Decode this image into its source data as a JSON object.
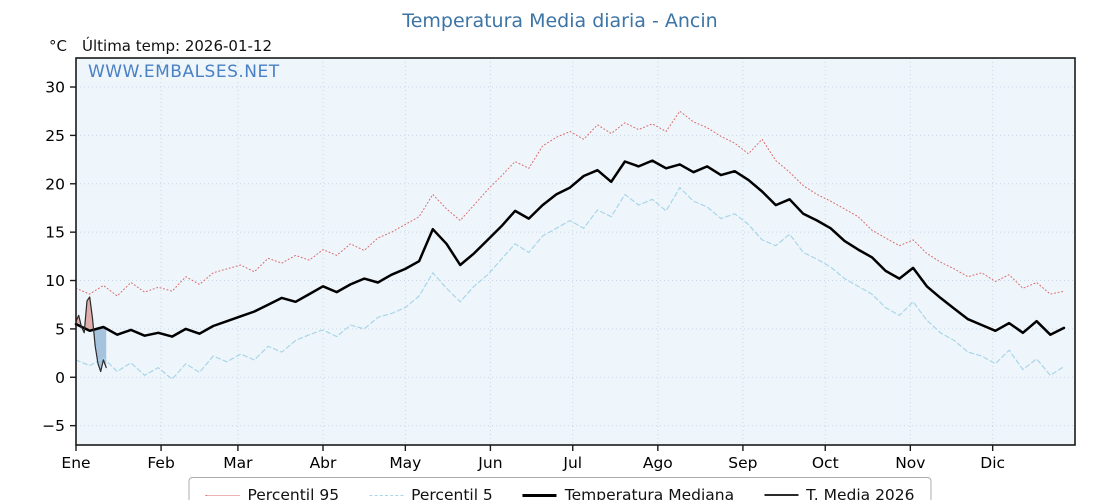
{
  "page": {
    "title": "Temperatura Media diaria - Ancin",
    "unit_label": "°C",
    "last_temp_label": "Última temp: 2026-01-12",
    "watermark": "WWW.EMBALSES.NET"
  },
  "legend": [
    {
      "label": "Percentil 95",
      "type": "dotted",
      "color": "#d96a6a"
    },
    {
      "label": "Percentil 5",
      "type": "dashed",
      "color": "#a9d6e8"
    },
    {
      "label": "Temperatura Mediana",
      "type": "thick",
      "color": "#000000"
    },
    {
      "label": "T. Media 2026",
      "type": "thin",
      "color": "#2a2a2a"
    }
  ],
  "chart_data": {
    "type": "line",
    "title": "Temperatura Media diaria - Ancin",
    "ylabel": "°C",
    "ylim": [
      -7,
      33
    ],
    "yticks": [
      -5,
      0,
      5,
      10,
      15,
      20,
      25,
      30
    ],
    "xlim": [
      1,
      365
    ],
    "grid": true,
    "plot_bg": "#eef5fb",
    "grid_color": "#c9d7e4",
    "month_ticks": {
      "labels": [
        "Ene",
        "Feb",
        "Mar",
        "Abr",
        "May",
        "Jun",
        "Jul",
        "Ago",
        "Sep",
        "Oct",
        "Nov",
        "Dic"
      ],
      "days": [
        1,
        32,
        60,
        91,
        121,
        152,
        182,
        213,
        244,
        274,
        305,
        335
      ]
    },
    "x": [
      1,
      6,
      11,
      16,
      21,
      26,
      31,
      36,
      41,
      46,
      51,
      56,
      61,
      66,
      71,
      76,
      81,
      86,
      91,
      96,
      101,
      106,
      111,
      116,
      121,
      126,
      131,
      136,
      141,
      146,
      151,
      156,
      161,
      166,
      171,
      176,
      181,
      186,
      191,
      196,
      201,
      206,
      211,
      216,
      221,
      226,
      231,
      236,
      241,
      246,
      251,
      256,
      261,
      266,
      271,
      276,
      281,
      286,
      291,
      296,
      301,
      306,
      311,
      316,
      321,
      326,
      331,
      336,
      341,
      346,
      351,
      356,
      361
    ],
    "series": [
      {
        "name": "Percentil 95",
        "color": "#d96a6a",
        "style": "dotted",
        "width": 1,
        "values": [
          9.2,
          8.6,
          9.5,
          8.4,
          9.8,
          8.8,
          9.3,
          8.9,
          10.4,
          9.6,
          10.8,
          11.2,
          11.6,
          10.9,
          12.3,
          11.8,
          12.6,
          12.1,
          13.2,
          12.6,
          13.8,
          13.1,
          14.4,
          15.0,
          15.8,
          16.6,
          18.9,
          17.4,
          16.2,
          17.8,
          19.4,
          20.8,
          22.3,
          21.6,
          23.9,
          24.8,
          25.4,
          24.6,
          26.1,
          25.2,
          26.3,
          25.6,
          26.2,
          25.4,
          27.5,
          26.4,
          25.8,
          24.9,
          24.2,
          23.1,
          24.6,
          22.4,
          21.2,
          19.8,
          18.9,
          18.2,
          17.4,
          16.6,
          15.2,
          14.4,
          13.6,
          14.2,
          12.8,
          11.9,
          11.2,
          10.4,
          10.8,
          9.9,
          10.6,
          9.2,
          9.8,
          8.6,
          8.9
        ]
      },
      {
        "name": "Percentil 5",
        "color": "#a9d6e8",
        "style": "dashed",
        "width": 1.2,
        "values": [
          1.8,
          1.2,
          2.0,
          0.6,
          1.5,
          0.2,
          1.0,
          -0.2,
          1.4,
          0.5,
          2.2,
          1.6,
          2.4,
          1.8,
          3.2,
          2.6,
          3.8,
          4.4,
          4.9,
          4.2,
          5.4,
          5.0,
          6.2,
          6.6,
          7.2,
          8.4,
          10.8,
          9.2,
          7.8,
          9.4,
          10.6,
          12.2,
          13.8,
          12.9,
          14.6,
          15.4,
          16.2,
          15.4,
          17.3,
          16.6,
          18.9,
          17.8,
          18.4,
          17.2,
          19.6,
          18.2,
          17.6,
          16.4,
          16.9,
          15.8,
          14.2,
          13.6,
          14.8,
          12.9,
          12.2,
          11.4,
          10.2,
          9.4,
          8.6,
          7.2,
          6.4,
          7.8,
          5.9,
          4.6,
          3.8,
          2.6,
          2.2,
          1.4,
          2.8,
          0.8,
          1.9,
          0.2,
          1.1
        ]
      },
      {
        "name": "Temperatura Mediana",
        "color": "#000000",
        "style": "solid",
        "width": 2.5,
        "values": [
          5.5,
          4.8,
          5.2,
          4.4,
          4.9,
          4.3,
          4.6,
          4.2,
          5.0,
          4.5,
          5.3,
          5.8,
          6.3,
          6.8,
          7.5,
          8.2,
          7.8,
          8.6,
          9.4,
          8.8,
          9.6,
          10.2,
          9.8,
          10.6,
          11.2,
          12.0,
          15.3,
          13.8,
          11.6,
          12.8,
          14.2,
          15.6,
          17.2,
          16.4,
          17.8,
          18.9,
          19.6,
          20.8,
          21.4,
          20.2,
          22.3,
          21.8,
          22.4,
          21.6,
          22.0,
          21.2,
          21.8,
          20.9,
          21.3,
          20.4,
          19.2,
          17.8,
          18.4,
          16.9,
          16.2,
          15.4,
          14.1,
          13.2,
          12.4,
          11.0,
          10.2,
          11.3,
          9.4,
          8.2,
          7.1,
          6.0,
          5.4,
          4.8,
          5.6,
          4.6,
          5.8,
          4.4,
          5.1
        ]
      },
      {
        "name": "T. Media 2026",
        "color": "#2a2a2a",
        "style": "solid",
        "width": 1.2,
        "x": [
          1,
          2,
          3,
          4,
          5,
          6,
          7,
          8,
          9,
          10,
          11,
          12
        ],
        "values": [
          5.8,
          6.4,
          5.2,
          4.6,
          7.9,
          8.3,
          6.1,
          3.2,
          1.4,
          0.6,
          1.8,
          1.0
        ]
      }
    ],
    "fill_between": {
      "series_a": "T. Media 2026",
      "series_b": "Temperatura Mediana",
      "above_color": "#d98880",
      "below_color": "#7fa8cc",
      "opacity": 0.65
    }
  }
}
